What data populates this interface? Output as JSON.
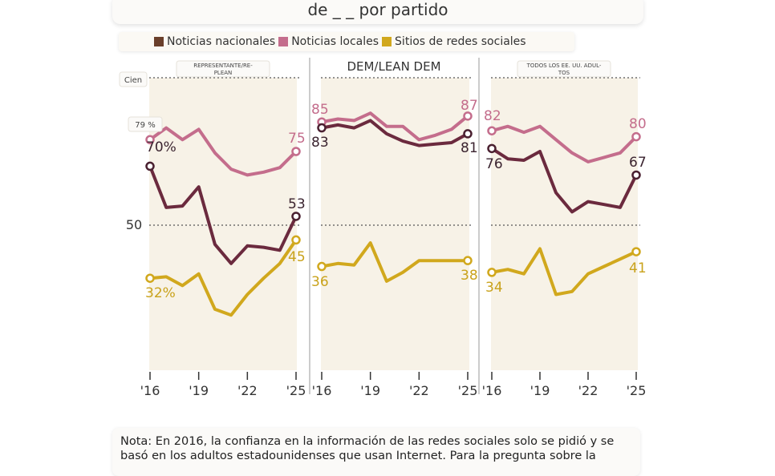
{
  "title": "de _ _ por partido",
  "legend": [
    {
      "label": "Noticias nacionales",
      "color": "#6b2a3e"
    },
    {
      "label": "Noticias locales",
      "color": "#c46d8c"
    },
    {
      "label": "Sitios de redes sociales",
      "color": "#d1a81d"
    }
  ],
  "legend_swatch_colors": [
    "#6a3f2b",
    "#c46d8c",
    "#d1a81d"
  ],
  "y_axis": {
    "top_label": "Cien",
    "mid_label": "50",
    "first_value_label": "79 %"
  },
  "note": "Nota: En 2016, la confianza en la información de las redes sociales solo se pidió y se basó en los adultos estadounidenses que usan Internet. Para la pregunta sobre la",
  "chart_data": {
    "type": "line",
    "ylim": [
      0,
      100
    ],
    "grid": "dotted lines at 50 and 100",
    "xticks": [
      "'16",
      "'19",
      "'22",
      "'25"
    ],
    "panels": [
      {
        "label": "REPRESENTANTE/RE-PLEAN",
        "series": [
          {
            "name": "Noticias nacionales",
            "values": [
              70,
              56,
              56.5,
              63,
              43.5,
              37,
              43,
              42.5,
              41.5,
              53
            ],
            "start_label": "70%",
            "end_label": "53"
          },
          {
            "name": "Noticias locales",
            "values": [
              79,
              83,
              79,
              82.5,
              74.5,
              69,
              67,
              68,
              69.5,
              75
            ],
            "start_label": "",
            "end_label": "75"
          },
          {
            "name": "Sitios de redes sociales",
            "values": [
              32,
              32.5,
              29.5,
              33.5,
              21.5,
              19.5,
              26.5,
              32,
              37,
              45
            ],
            "start_label": "32%",
            "end_label": "45"
          }
        ]
      },
      {
        "label": "DEM/LEAN DEM",
        "series": [
          {
            "name": "Noticias nacionales",
            "values": [
              83,
              84,
              83,
              85.5,
              81,
              78.5,
              77,
              77.5,
              78,
              81
            ],
            "start_label": "83",
            "end_label": "81"
          },
          {
            "name": "Noticias locales",
            "values": [
              85,
              86,
              85.5,
              88,
              83.5,
              83.5,
              79,
              80.5,
              82.5,
              87
            ],
            "start_label": "85",
            "end_label": "87"
          },
          {
            "name": "Sitios de redes sociales",
            "values": [
              36,
              37,
              36.5,
              44,
              31,
              34,
              38,
              38,
              38,
              38
            ],
            "start_label": "36",
            "end_label": "38"
          }
        ]
      },
      {
        "label": "TODOS LOS EE. UU. ADUL-TOS",
        "series": [
          {
            "name": "Noticias nacionales",
            "values": [
              76,
              72.5,
              72,
              75,
              61,
              54.5,
              58,
              57,
              56,
              67
            ],
            "start_label": "76",
            "end_label": "67"
          },
          {
            "name": "Noticias locales",
            "values": [
              82,
              83.5,
              81.5,
              83.5,
              79,
              74.5,
              71.5,
              73,
              74.5,
              80
            ],
            "start_label": "82",
            "end_label": "80"
          },
          {
            "name": "Sitios de redes sociales",
            "values": [
              34,
              35,
              33.5,
              42,
              26.5,
              27.5,
              33.5,
              36,
              38.5,
              41
            ],
            "start_label": "34",
            "end_label": "41"
          }
        ]
      }
    ]
  }
}
